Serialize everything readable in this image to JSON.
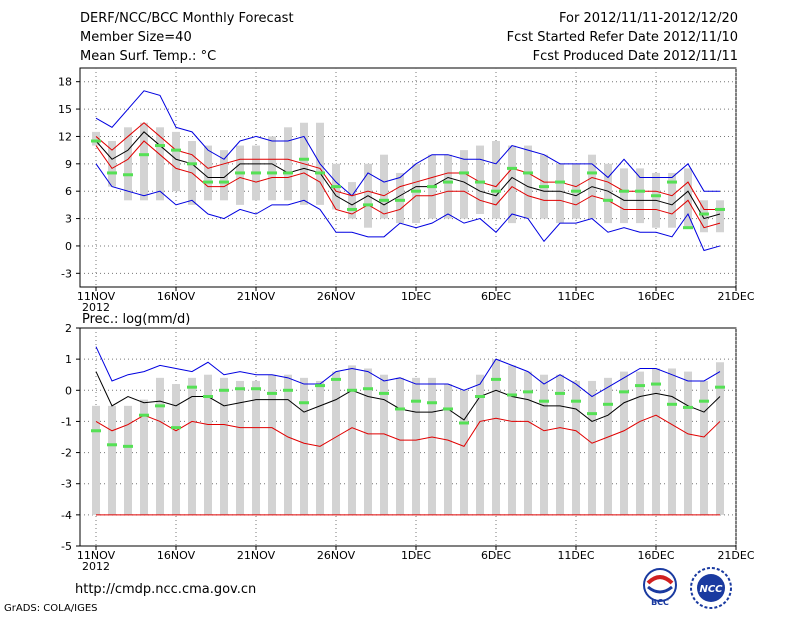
{
  "header": {
    "title": "DERF/NCC/BCC Monthly Forecast",
    "member_size": "Member Size=40",
    "variable": "Mean Surf. Temp.: °C",
    "for_range": "For 2012/11/11-2012/12/20",
    "started": "Fcst Started Refer Date 2012/11/10",
    "produced": "Fcst Produced Date 2012/11/11"
  },
  "footer": {
    "url": "http://cmdp.ncc.cma.gov.cn",
    "grads": "GrADS: COLA/IGES",
    "logo_bcc": "BCC",
    "logo_ncc": "NCC"
  },
  "colors": {
    "box": "#d3d3d3",
    "median": "#55e055",
    "mean": "#000000",
    "spread": "#e00000",
    "extreme": "#0000e0",
    "grid": "#777777"
  },
  "chart_data": [
    {
      "type": "box-ensemble",
      "title": "Mean Surf. Temp.: °C",
      "xlabel": "2012",
      "x_ticks": [
        "11NOV",
        "16NOV",
        "21NOV",
        "26NOV",
        "1DEC",
        "6DEC",
        "11DEC",
        "16DEC",
        "21DEC"
      ],
      "x_tick_days": [
        0,
        5,
        10,
        15,
        20,
        25,
        30,
        35,
        40
      ],
      "x_range": [
        -1,
        40
      ],
      "ylim": [
        -4.5,
        19.5
      ],
      "y_ticks": [
        -3,
        0,
        3,
        6,
        9,
        12,
        15,
        18
      ],
      "days": [
        0,
        1,
        2,
        3,
        4,
        5,
        6,
        7,
        8,
        9,
        10,
        11,
        12,
        13,
        14,
        15,
        16,
        17,
        18,
        19,
        20,
        21,
        22,
        23,
        24,
        25,
        26,
        27,
        28,
        29,
        30,
        31,
        32,
        33,
        34,
        35,
        36,
        37,
        38,
        39
      ],
      "box_low": [
        11,
        6.5,
        5,
        5,
        5,
        6,
        4.5,
        5,
        5,
        4.5,
        5,
        5,
        5,
        4.5,
        4.5,
        4,
        3,
        2,
        3,
        2.5,
        2.5,
        3,
        3,
        3,
        3.5,
        3,
        2.5,
        3,
        3,
        2.5,
        3,
        3,
        2.5,
        2.5,
        2.5,
        2,
        2,
        2,
        1.5,
        1.5
      ],
      "box_high": [
        12.5,
        11.5,
        13,
        13.5,
        13,
        12.5,
        11.5,
        11,
        10.5,
        11,
        11,
        12,
        13,
        13.5,
        13.5,
        9,
        7,
        9,
        10,
        8,
        9,
        10,
        10,
        10.5,
        11,
        11.5,
        11,
        11,
        10,
        9,
        9,
        10,
        9,
        8.5,
        8.5,
        8,
        8,
        8.5,
        5,
        5
      ],
      "median": [
        11.5,
        8,
        7.8,
        10,
        11,
        10.5,
        9,
        7,
        7,
        8,
        8,
        8,
        8,
        9.5,
        8,
        6.5,
        4,
        4.5,
        5,
        5,
        6,
        6.5,
        7,
        8,
        7,
        6,
        8.5,
        8,
        6.5,
        7,
        6,
        8,
        5,
        6,
        6,
        5.5,
        7,
        2,
        3.5,
        4
      ],
      "mean": [
        11.5,
        9.5,
        10.5,
        12.5,
        11,
        9.5,
        9,
        7.5,
        7.5,
        9,
        9,
        9,
        8,
        8.5,
        8,
        5.5,
        4.5,
        5.5,
        4.5,
        5.5,
        6.5,
        6.5,
        7.5,
        7,
        6,
        5.5,
        7.5,
        6.5,
        6,
        6,
        5.5,
        6.5,
        6,
        5,
        5,
        5,
        4.5,
        6,
        3,
        3.5
      ],
      "upper": [
        12,
        10.5,
        12,
        13.5,
        12,
        10.5,
        10,
        8.5,
        9,
        9.5,
        9.5,
        9.5,
        9.5,
        9,
        8.5,
        6,
        5.5,
        6,
        5.5,
        6.5,
        7,
        7.5,
        8,
        8,
        7,
        6.5,
        8.5,
        8,
        7,
        7,
        6.5,
        7.5,
        7,
        6,
        6,
        6,
        5.5,
        7,
        4,
        4
      ],
      "lower": [
        11,
        8.5,
        9.5,
        11.5,
        10,
        8.5,
        8,
        6.5,
        6.5,
        7.5,
        7,
        7.5,
        7.5,
        8,
        7,
        4,
        3.5,
        4.5,
        3.5,
        4,
        5.5,
        5.5,
        6,
        6,
        5,
        4.5,
        6.5,
        5.5,
        5,
        5,
        4.5,
        5.5,
        5,
        4,
        4,
        4,
        3.5,
        5,
        2,
        2.5
      ],
      "max": [
        14,
        13,
        15,
        17,
        16.5,
        13,
        12.5,
        10.5,
        9.5,
        11.5,
        12,
        11.5,
        11.5,
        12,
        9,
        7,
        5.5,
        8,
        7,
        7.5,
        9,
        10,
        10,
        9.5,
        9.5,
        9,
        11,
        10.5,
        10,
        9,
        9,
        9,
        7.5,
        9.5,
        7.5,
        7.5,
        7.5,
        9,
        6,
        6
      ],
      "min": [
        9,
        6.5,
        6,
        5.5,
        6,
        4.5,
        5,
        3.5,
        3,
        4,
        3.5,
        4.5,
        4.5,
        5,
        4,
        1.5,
        1.5,
        1,
        1,
        2.5,
        2,
        2.5,
        3.5,
        2.5,
        3,
        1.5,
        3.5,
        3,
        0.5,
        2.5,
        2.5,
        3,
        1.5,
        2,
        1.5,
        1.5,
        1,
        3.5,
        -0.5,
        0
      ]
    },
    {
      "type": "box-ensemble",
      "title": "Prec.: log(mm/d)",
      "xlabel": "2012",
      "x_ticks": [
        "11NOV",
        "16NOV",
        "21NOV",
        "26NOV",
        "1DEC",
        "6DEC",
        "11DEC",
        "16DEC",
        "21DEC"
      ],
      "x_tick_days": [
        0,
        5,
        10,
        15,
        20,
        25,
        30,
        35,
        40
      ],
      "x_range": [
        -1,
        40
      ],
      "ylim": [
        -5,
        2
      ],
      "y_ticks": [
        -5,
        -4,
        -3,
        -2,
        -1,
        0,
        1,
        2
      ],
      "days": [
        0,
        1,
        2,
        3,
        4,
        5,
        6,
        7,
        8,
        9,
        10,
        11,
        12,
        13,
        14,
        15,
        16,
        17,
        18,
        19,
        20,
        21,
        22,
        23,
        24,
        25,
        26,
        27,
        28,
        29,
        30,
        31,
        32,
        33,
        34,
        35,
        36,
        37,
        38,
        39
      ],
      "box_low": [
        -4,
        -4,
        -4,
        -4,
        -4,
        -4,
        -4,
        -4,
        -4,
        -4,
        -4,
        -4,
        -4,
        -4,
        -4,
        -4,
        -4,
        -4,
        -4,
        -4,
        -4,
        -4,
        -4,
        -4,
        -4,
        -4,
        -4,
        -4,
        -4,
        -4,
        -4,
        -4,
        -4,
        -4,
        -4,
        -4,
        -4,
        -4,
        -4,
        -4
      ],
      "box_high": [
        -0.5,
        -0.5,
        -0.5,
        -0.3,
        0.4,
        0.2,
        0.4,
        0.5,
        0.4,
        0.3,
        0.3,
        0.5,
        0.5,
        0.4,
        0.3,
        0.6,
        0.8,
        0.7,
        0.5,
        0.4,
        0.4,
        0.4,
        0.2,
        0,
        0.5,
        1.0,
        0.8,
        0.6,
        0.5,
        0.5,
        0.3,
        0.3,
        0.4,
        0.6,
        0.6,
        0.7,
        0.7,
        0.6,
        0.3,
        0.9
      ],
      "median": [
        -1.3,
        -1.75,
        -1.8,
        -0.8,
        -0.5,
        -1.2,
        0.1,
        -0.2,
        0,
        0.05,
        0.05,
        -0.1,
        0,
        -0.4,
        0.15,
        0.35,
        0,
        0.05,
        -0.1,
        -0.6,
        -0.35,
        -0.4,
        -0.6,
        -1.05,
        -0.2,
        0.35,
        -0.15,
        -0.05,
        -0.35,
        -0.1,
        -0.35,
        -0.75,
        -0.45,
        -0.05,
        0.15,
        0.2,
        -0.45,
        -0.55,
        -0.35,
        0.1
      ],
      "mean": [
        0.6,
        -0.5,
        -0.2,
        -0.4,
        -0.35,
        -0.5,
        -0.2,
        -0.2,
        -0.5,
        -0.4,
        -0.3,
        -0.3,
        -0.3,
        -0.7,
        -0.5,
        -0.3,
        0,
        -0.2,
        -0.3,
        -0.6,
        -0.7,
        -0.7,
        -0.6,
        -0.95,
        -0.2,
        0,
        -0.2,
        -0.3,
        -0.5,
        -0.5,
        -0.6,
        -1.0,
        -0.8,
        -0.4,
        -0.2,
        -0.1,
        -0.2,
        -0.5,
        -0.7,
        -0.2
      ],
      "upper": [
        1.4,
        0.3,
        0.5,
        0.6,
        0.8,
        0.7,
        0.6,
        0.9,
        0.5,
        0.6,
        0.5,
        0.5,
        0.4,
        0.2,
        0.2,
        0.6,
        0.7,
        0.6,
        0.3,
        0.4,
        0.2,
        0.2,
        0.2,
        0,
        0.2,
        1.0,
        0.8,
        0.6,
        0.2,
        0.5,
        0.2,
        -0.2,
        0.1,
        0.4,
        0.7,
        0.7,
        0.5,
        0.3,
        0.3,
        0.6
      ],
      "lower": [
        -1.0,
        -1.3,
        -1.1,
        -0.8,
        -1.0,
        -1.3,
        -1.0,
        -1.1,
        -1.1,
        -1.2,
        -1.2,
        -1.2,
        -1.5,
        -1.7,
        -1.8,
        -1.5,
        -1.2,
        -1.4,
        -1.4,
        -1.6,
        -1.6,
        -1.5,
        -1.6,
        -1.8,
        -1.0,
        -0.9,
        -1.0,
        -1.0,
        -1.3,
        -1.2,
        -1.3,
        -1.7,
        -1.5,
        -1.3,
        -1.0,
        -0.8,
        -1.1,
        -1.4,
        -1.5,
        -1.0
      ],
      "bottom": -4
    }
  ]
}
